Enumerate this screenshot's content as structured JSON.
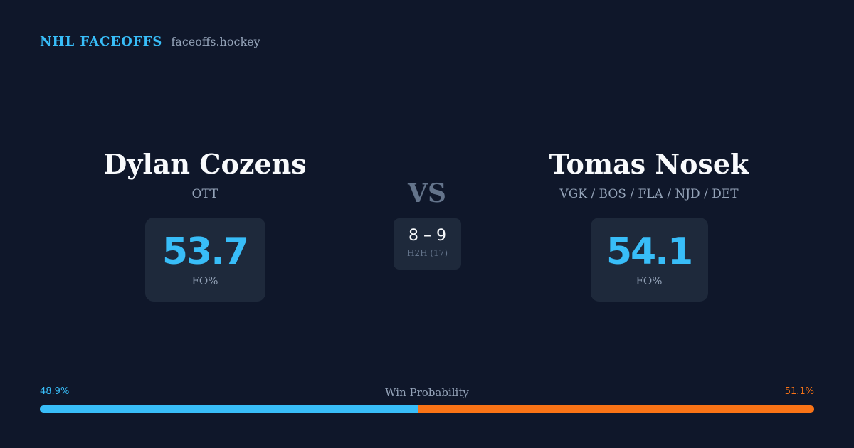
{
  "header": {
    "brand": "NHL FACEOFFS",
    "domain": "faceoffs.hockey"
  },
  "players": {
    "left": {
      "name": "Dylan Cozens",
      "team": "OTT",
      "stat_value": "53.7",
      "stat_label": "FO%"
    },
    "right": {
      "name": "Tomas Nosek",
      "team": "VGK / BOS / FLA / NJD / DET",
      "stat_value": "54.1",
      "stat_label": "FO%"
    }
  },
  "matchup": {
    "vs_label": "VS",
    "h2h_score": "8 – 9",
    "h2h_label": "H2H (17)"
  },
  "win_probability": {
    "title": "Win Probability",
    "left_label": "48.9%",
    "right_label": "51.1%",
    "left_fraction": 0.489,
    "right_fraction": 0.511
  },
  "colors": {
    "background": "#0f172a",
    "card": "#1e293b",
    "accent_blue": "#38bdf8",
    "accent_orange": "#f97316",
    "muted": "#94a3b8"
  }
}
